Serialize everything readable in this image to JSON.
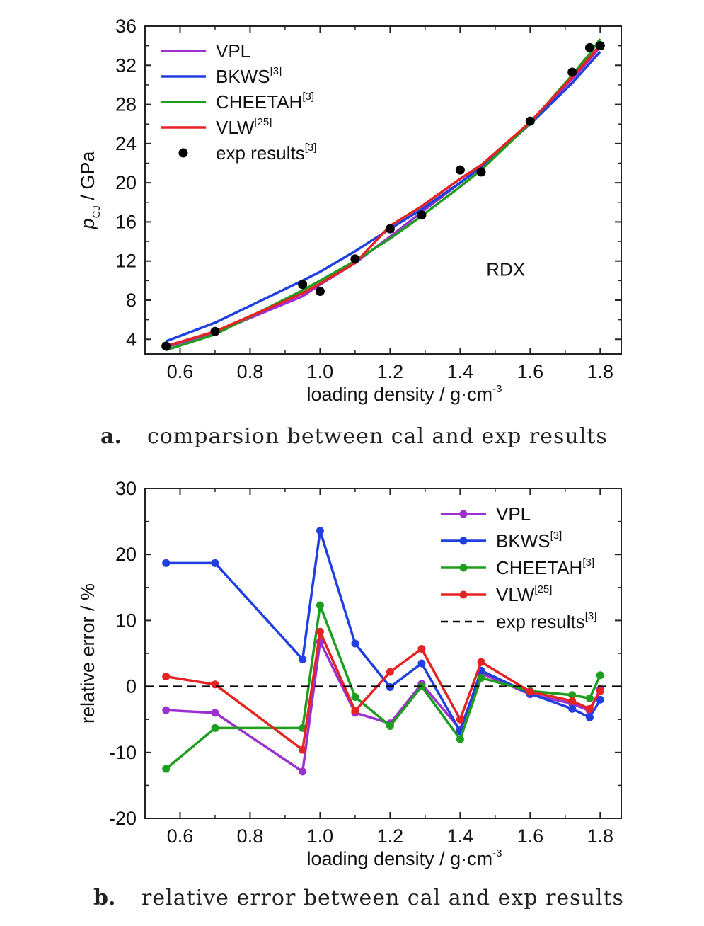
{
  "chart_data": [
    {
      "type": "line",
      "panel": "a",
      "caption_letter": "a.",
      "caption": "comparsion between cal and exp results",
      "annotation": "RDX",
      "xlabel": "loading density / g·cm",
      "xlabel_sup": "-3",
      "ylabel_main": "p",
      "ylabel_sub": "CJ",
      "ylabel_rest": " / GPa",
      "xlim": [
        0.5,
        1.86
      ],
      "ylim": [
        2.5,
        36
      ],
      "xticks": [
        0.6,
        0.8,
        1.0,
        1.2,
        1.4,
        1.6,
        1.8
      ],
      "xtick_labels": [
        "0.6",
        "0.8",
        "1.0",
        "1.2",
        "1.4",
        "1.6",
        "1.8"
      ],
      "yticks": [
        4,
        8,
        12,
        16,
        20,
        24,
        28,
        32,
        36
      ],
      "ytick_labels": [
        "4",
        "8",
        "12",
        "16",
        "20",
        "24",
        "28",
        "32",
        "36"
      ],
      "legend_position": "top-left",
      "series": [
        {
          "name": "VPL",
          "sup": "",
          "color": "#9b30d0",
          "marker": "none",
          "x": [
            0.56,
            0.7,
            0.95,
            1.0,
            1.1,
            1.2,
            1.29,
            1.4,
            1.46,
            1.6,
            1.72,
            1.77,
            1.8
          ],
          "y": [
            3.2,
            4.7,
            8.4,
            9.6,
            11.8,
            14.5,
            17.0,
            20.0,
            21.6,
            26.2,
            30.6,
            32.6,
            33.9
          ]
        },
        {
          "name": "BKWS",
          "sup": "[3]",
          "color": "#1f3fe0",
          "marker": "none",
          "x": [
            0.56,
            0.7,
            0.95,
            1.0,
            1.1,
            1.2,
            1.29,
            1.4,
            1.46,
            1.6,
            1.72,
            1.77,
            1.8
          ],
          "y": [
            3.8,
            5.7,
            10.0,
            10.9,
            13.0,
            15.3,
            17.3,
            20.0,
            21.6,
            26.0,
            30.2,
            32.2,
            33.4
          ]
        },
        {
          "name": "CHEETAH",
          "sup": "[3]",
          "color": "#1e9e1e",
          "marker": "none",
          "x": [
            0.56,
            0.7,
            0.95,
            1.0,
            1.1,
            1.2,
            1.29,
            1.4,
            1.46,
            1.6,
            1.72,
            1.77,
            1.8
          ],
          "y": [
            2.9,
            4.5,
            9.0,
            10.0,
            12.0,
            14.3,
            16.6,
            19.6,
            21.3,
            26.1,
            31.0,
            33.2,
            34.7
          ]
        },
        {
          "name": "VLW",
          "sup": "[25]",
          "color": "#e52323",
          "marker": "none",
          "x": [
            0.56,
            0.7,
            0.95,
            1.0,
            1.1,
            1.2,
            1.29,
            1.4,
            1.46,
            1.6,
            1.72,
            1.77,
            1.8
          ],
          "y": [
            3.3,
            4.8,
            8.7,
            9.7,
            11.8,
            15.6,
            17.6,
            20.4,
            21.8,
            26.2,
            30.8,
            32.8,
            34.1
          ]
        },
        {
          "name": "exp results",
          "sup": "[3]",
          "color": "#000000",
          "marker": "dot",
          "x": [
            0.56,
            0.7,
            0.95,
            1.0,
            1.1,
            1.2,
            1.29,
            1.4,
            1.46,
            1.6,
            1.72,
            1.77,
            1.8
          ],
          "y": [
            3.3,
            4.8,
            9.6,
            8.9,
            12.2,
            15.3,
            16.7,
            21.3,
            21.1,
            26.3,
            31.3,
            33.8,
            34.0
          ]
        }
      ]
    },
    {
      "type": "line",
      "panel": "b",
      "caption_letter": "b.",
      "caption": "relative error between cal and exp results",
      "xlabel": "loading density / g·cm",
      "xlabel_sup": "-3",
      "ylabel": "relative error / %",
      "xlim": [
        0.5,
        1.86
      ],
      "ylim": [
        -20,
        30
      ],
      "xticks": [
        0.6,
        0.8,
        1.0,
        1.2,
        1.4,
        1.6,
        1.8
      ],
      "xtick_labels": [
        "0.6",
        "0.8",
        "1.0",
        "1.2",
        "1.4",
        "1.6",
        "1.8"
      ],
      "yticks": [
        -20,
        -10,
        0,
        10,
        20,
        30
      ],
      "ytick_labels": [
        "-20",
        "-10",
        "0",
        "10",
        "20",
        "30"
      ],
      "legend_position": "top-right",
      "series": [
        {
          "name": "VPL",
          "sup": "",
          "color": "#9b30d0",
          "marker": "dot",
          "x": [
            0.56,
            0.7,
            0.95,
            1.0,
            1.1,
            1.2,
            1.29,
            1.4,
            1.46,
            1.6,
            1.72,
            1.77,
            1.8
          ],
          "y": [
            -3.6,
            -4.0,
            -12.9,
            6.8,
            -4.0,
            -5.6,
            0.4,
            -6.5,
            2.0,
            -1.2,
            -2.6,
            -3.7,
            -0.4
          ]
        },
        {
          "name": "BKWS",
          "sup": "[3]",
          "color": "#1f3fe0",
          "marker": "dot",
          "x": [
            0.56,
            0.7,
            0.95,
            1.0,
            1.1,
            1.2,
            1.29,
            1.4,
            1.46,
            1.6,
            1.72,
            1.77,
            1.8
          ],
          "y": [
            18.7,
            18.7,
            4.1,
            23.6,
            6.5,
            -0.1,
            3.5,
            -6.8,
            2.4,
            -1.1,
            -3.4,
            -4.7,
            -2.0
          ]
        },
        {
          "name": "CHEETAH",
          "sup": "[3]",
          "color": "#1e9e1e",
          "marker": "dot",
          "x": [
            0.56,
            0.7,
            0.95,
            1.0,
            1.1,
            1.2,
            1.29,
            1.4,
            1.46,
            1.6,
            1.72,
            1.77,
            1.8
          ],
          "y": [
            -12.5,
            -6.3,
            -6.3,
            12.3,
            -1.6,
            -6.0,
            0.0,
            -8.0,
            1.3,
            -0.7,
            -1.3,
            -1.8,
            1.7
          ]
        },
        {
          "name": "VLW",
          "sup": "[25]",
          "color": "#e52323",
          "marker": "dot",
          "x": [
            0.56,
            0.7,
            0.95,
            1.0,
            1.1,
            1.2,
            1.29,
            1.4,
            1.46,
            1.6,
            1.72,
            1.77,
            1.8
          ],
          "y": [
            1.5,
            0.3,
            -9.6,
            8.3,
            -3.7,
            2.2,
            5.7,
            -5.0,
            3.7,
            -0.8,
            -2.2,
            -3.4,
            -0.7
          ]
        },
        {
          "name": "exp results",
          "sup": "[3]",
          "color": "#000000",
          "marker": "dashed",
          "x": [
            0.5,
            1.86
          ],
          "y": [
            0,
            0
          ]
        }
      ]
    }
  ]
}
